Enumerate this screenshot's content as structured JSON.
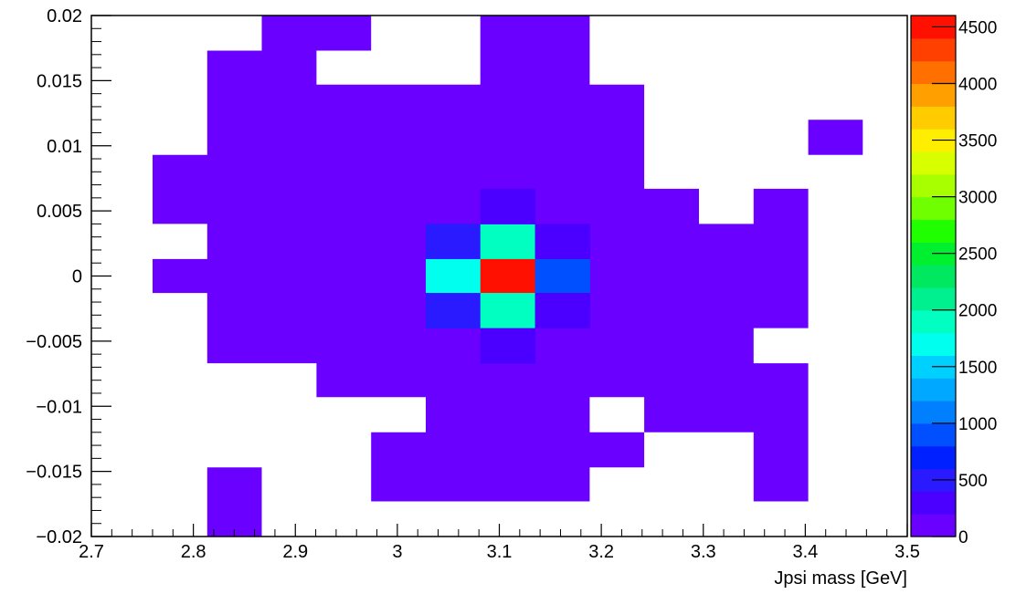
{
  "chart_data": {
    "type": "heatmap",
    "title": "",
    "xlabel": "Jpsi mass [GeV]",
    "ylabel": "",
    "xlim": [
      2.7,
      3.5
    ],
    "ylim": [
      -0.02,
      0.02
    ],
    "x_ticks": [
      2.7,
      2.8,
      2.9,
      3.0,
      3.1,
      3.2,
      3.3,
      3.4,
      3.5
    ],
    "x_tick_labels": [
      "2.7",
      "2.8",
      "2.9",
      "3",
      "3.1",
      "3.2",
      "3.3",
      "3.4",
      "3.5"
    ],
    "y_ticks": [
      -0.02,
      -0.015,
      -0.01,
      -0.005,
      0,
      0.005,
      0.01,
      0.015,
      0.02
    ],
    "y_tick_labels": [
      "−0.02",
      "−0.015",
      "−0.01",
      "−0.005",
      "0",
      "0.005",
      "0.01",
      "0.015",
      "0.02"
    ],
    "colorbar": {
      "min": 0,
      "max": 4600,
      "ticks": [
        0,
        500,
        1000,
        1500,
        2000,
        2500,
        3000,
        3500,
        4000,
        4500
      ],
      "tick_labels": [
        "0",
        "500",
        "1000",
        "1500",
        "2000",
        "2500",
        "3000",
        "3500",
        "4000",
        "4500"
      ],
      "palette": [
        "#6a00ff",
        "#4b00ff",
        "#2a1aff",
        "#0020ff",
        "#0050ff",
        "#0080ff",
        "#00a8ff",
        "#00d0ff",
        "#00ffee",
        "#00ffc0",
        "#00f090",
        "#00e860",
        "#00f030",
        "#20ff00",
        "#70ff00",
        "#a8ff00",
        "#d8ff00",
        "#ffee00",
        "#ffcc00",
        "#ffa000",
        "#ff7000",
        "#ff4000",
        "#ff1000"
      ]
    },
    "grid": false,
    "legend": "none",
    "cells": [
      {
        "x": [
          2.8136,
          2.8671
        ],
        "y": [
          0.0186,
          0.02
        ],
        "value": 80
      },
      {
        "x": [
          2.8671,
          2.9207
        ],
        "y": [
          0.0186,
          0.02
        ],
        "value": 80
      },
      {
        "x": [
          2.8136,
          2.8671
        ],
        "y": [
          0.0147,
          0.0186
        ],
        "value": 80
      },
      {
        "x": [
          2.76,
          2.8136
        ],
        "y": [
          0.0053,
          0.0093
        ],
        "value": 80
      },
      {
        "x": [
          2.76,
          2.8136
        ],
        "y": [
          -0.0007,
          0.0013
        ],
        "value": 80
      },
      {
        "x": [
          2.8136,
          2.8671
        ],
        "y": [
          -0.02,
          -0.0147
        ],
        "value": 80
      },
      {
        "x": [
          2.9743,
          3.0279
        ],
        "y": [
          -0.0173,
          -0.0067
        ],
        "value": 80
      },
      {
        "x": [
          3.0279,
          3.0814
        ],
        "y": [
          0.004,
          0.0067
        ],
        "value": 80
      },
      {
        "x": [
          3.0814,
          3.135
        ],
        "y": [
          0.0147,
          0.02
        ],
        "value": 80
      },
      {
        "x": [
          3.4029,
          3.4564
        ],
        "y": [
          0.0093,
          0.012
        ],
        "value": 80
      },
      {
        "x": [
          3.0279,
          3.0814
        ],
        "y": [
          0.0013,
          0.004
        ],
        "value": 500
      },
      {
        "x": [
          3.0814,
          3.135
        ],
        "y": [
          0.0013,
          0.004
        ],
        "value": 1900
      },
      {
        "x": [
          3.135,
          3.1886
        ],
        "y": [
          0.0013,
          0.004
        ],
        "value": 300
      },
      {
        "x": [
          3.0279,
          3.0814
        ],
        "y": [
          -0.0013,
          0.0013
        ],
        "value": 1600
      },
      {
        "x": [
          3.0814,
          3.135
        ],
        "y": [
          -0.0013,
          0.0013
        ],
        "value": 4600
      },
      {
        "x": [
          3.135,
          3.1886
        ],
        "y": [
          -0.0013,
          0.0013
        ],
        "value": 900
      },
      {
        "x": [
          3.0279,
          3.0814
        ],
        "y": [
          -0.004,
          -0.0013
        ],
        "value": 500
      },
      {
        "x": [
          3.0814,
          3.135
        ],
        "y": [
          -0.004,
          -0.0013
        ],
        "value": 1900
      },
      {
        "x": [
          3.135,
          3.1886
        ],
        "y": [
          -0.004,
          -0.0013
        ],
        "value": 300
      },
      {
        "x": [
          3.0814,
          3.135
        ],
        "y": [
          -0.0067,
          -0.004
        ],
        "value": 200
      },
      {
        "x": [
          3.0814,
          3.135
        ],
        "y": [
          0.004,
          0.0067
        ],
        "value": 200
      }
    ]
  }
}
